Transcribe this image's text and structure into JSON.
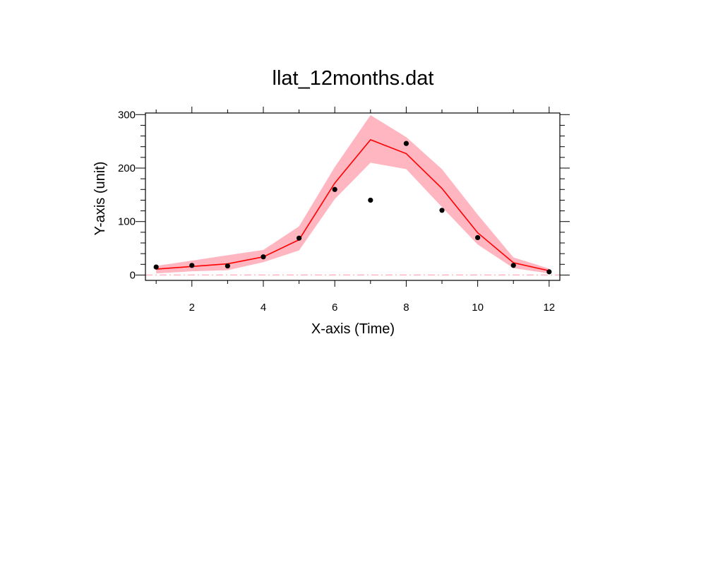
{
  "chart_data": {
    "type": "line",
    "title": "llat_12months.dat",
    "xlabel": "X-axis (Time)",
    "ylabel": "Y-axis (unit)",
    "xlim": [
      0.7,
      12.3
    ],
    "ylim": [
      -10,
      303
    ],
    "x_ticks": [
      2,
      4,
      6,
      8,
      10,
      12
    ],
    "y_ticks": [
      0,
      100,
      200,
      300
    ],
    "grid": false,
    "legend": "none",
    "x": [
      1,
      2,
      3,
      4,
      5,
      6,
      7,
      8,
      9,
      10,
      11,
      12
    ],
    "series": [
      {
        "type": "line",
        "color": "#ff0000",
        "values": [
          11,
          16,
          21,
          34,
          66,
          172,
          253,
          227,
          162,
          79,
          23,
          8
        ]
      },
      {
        "type": "band",
        "color": "#ffb6c1",
        "upper": [
          17,
          27,
          37,
          47,
          91,
          202,
          299,
          258,
          198,
          113,
          33,
          12
        ],
        "lower": [
          3,
          7,
          9,
          24,
          46,
          142,
          210,
          198,
          127,
          57,
          13,
          3
        ]
      },
      {
        "type": "scatter",
        "color": "#000000",
        "values": [
          15,
          18,
          17,
          34,
          69,
          160,
          140,
          246,
          121,
          70,
          18,
          6
        ]
      },
      {
        "type": "reference-line",
        "color": "#ffb6c1",
        "dash": "dash-dot",
        "value": 0
      }
    ]
  }
}
